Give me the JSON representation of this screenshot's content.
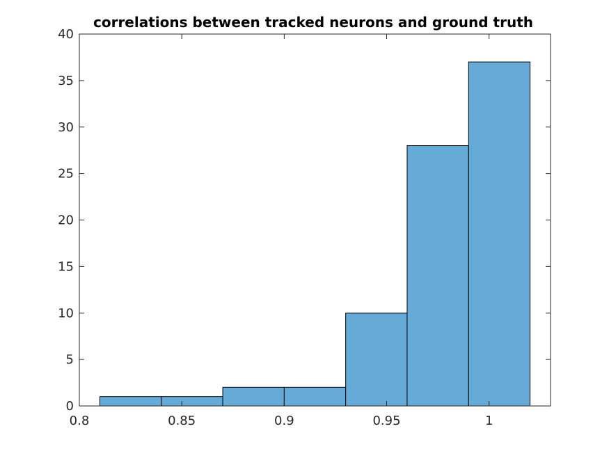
{
  "chart_data": {
    "type": "bar",
    "title": "correlations between tracked neurons and ground truth",
    "xlabel": "",
    "ylabel": "",
    "bin_edges": [
      0.81,
      0.84,
      0.87,
      0.9,
      0.93,
      0.96,
      0.99,
      1.02
    ],
    "values": [
      1,
      1,
      2,
      2,
      10,
      28,
      37
    ],
    "xlim": [
      0.8,
      1.03
    ],
    "ylim": [
      0,
      40
    ],
    "xticks": [
      0.8,
      0.85,
      0.9,
      0.95,
      1
    ],
    "xtick_labels": [
      "0.8",
      "0.85",
      "0.9",
      "0.95",
      "1"
    ],
    "yticks": [
      0,
      5,
      10,
      15,
      20,
      25,
      30,
      35,
      40
    ],
    "ytick_labels": [
      "0",
      "5",
      "10",
      "15",
      "20",
      "25",
      "30",
      "35",
      "40"
    ],
    "grid": false,
    "bar_color": "#66aad7",
    "edge_color": "#000000"
  }
}
